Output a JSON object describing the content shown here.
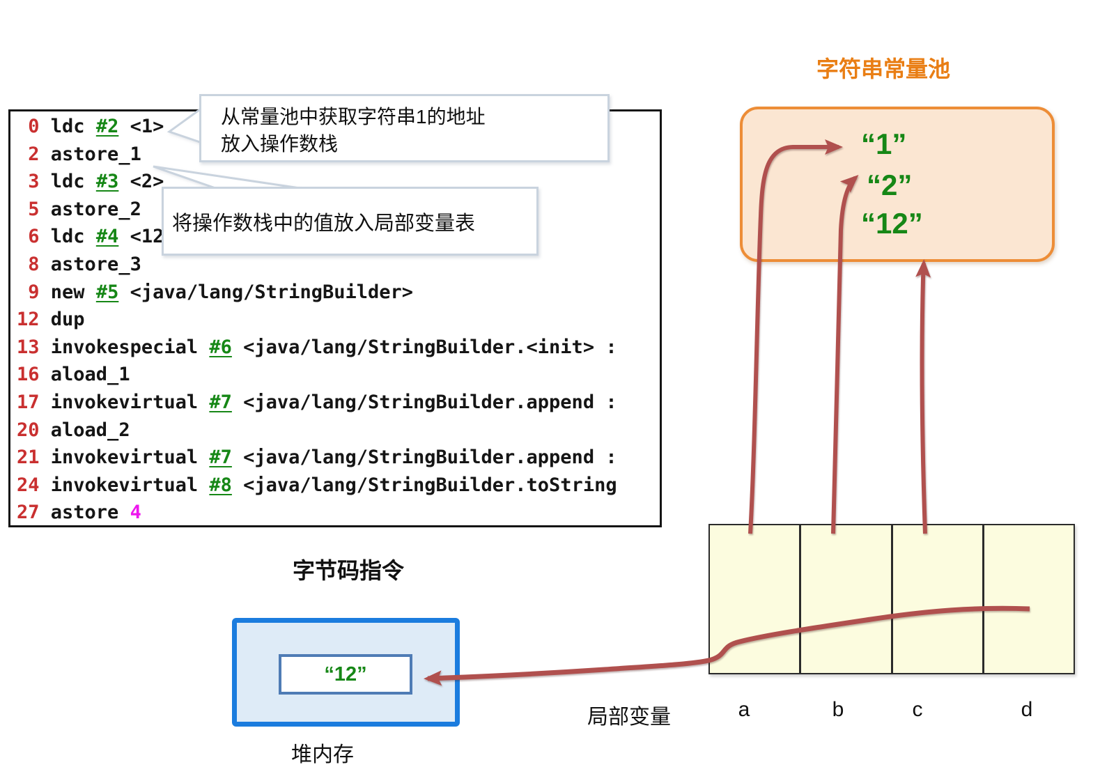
{
  "bytecode_panel": {
    "caption": "字节码指令",
    "lines": [
      {
        "num": "0",
        "instr": "ldc",
        "ref": "#2",
        "operand": "<1>"
      },
      {
        "num": "2",
        "instr": "astore_1"
      },
      {
        "num": "3",
        "instr": "ldc",
        "ref": "#3",
        "operand": "<2>"
      },
      {
        "num": "5",
        "instr": "astore_2"
      },
      {
        "num": "6",
        "instr": "ldc",
        "ref": "#4",
        "operand": "<12>"
      },
      {
        "num": "8",
        "instr": "astore_3"
      },
      {
        "num": "9",
        "instr": "new",
        "ref": "#5",
        "operand": "<java/lang/StringBuilder>"
      },
      {
        "num": "12",
        "instr": "dup"
      },
      {
        "num": "13",
        "instr": "invokespecial",
        "ref": "#6",
        "operand": "<java/lang/StringBuilder.<init> :"
      },
      {
        "num": "16",
        "instr": "aload_1"
      },
      {
        "num": "17",
        "instr": "invokevirtual",
        "ref": "#7",
        "operand": "<java/lang/StringBuilder.append :"
      },
      {
        "num": "20",
        "instr": "aload_2"
      },
      {
        "num": "21",
        "instr": "invokevirtual",
        "ref": "#7",
        "operand": "<java/lang/StringBuilder.append :"
      },
      {
        "num": "24",
        "instr": "invokevirtual",
        "ref": "#8",
        "operand": "<java/lang/StringBuilder.toString"
      },
      {
        "num": "27",
        "instr": "astore",
        "operand_magenta": "4"
      }
    ]
  },
  "callouts": [
    {
      "text_lines": [
        "从常量池中获取字符串1的地址",
        "放入操作数栈"
      ]
    },
    {
      "text_lines": [
        "将操作数栈中的值放入局部变量表"
      ]
    }
  ],
  "string_pool": {
    "title": "字符串常量池",
    "items": [
      "“1”",
      "“2”",
      "“12”"
    ]
  },
  "local_vars": {
    "caption": "局部变量",
    "slots": [
      "a",
      "b",
      "c",
      "d"
    ]
  },
  "heap": {
    "caption": "堆内存",
    "value": "“12”"
  },
  "colors": {
    "arrow": "#B0504E",
    "line_number_red": "#C93030",
    "ref_green": "#168716",
    "operand_magenta": "#EE16EE",
    "pool_title_orange": "#E97E14",
    "pool_border": "#ED8D37",
    "pool_fill": "#FBE6D2",
    "table_fill": "#FCFCDF",
    "heap_border": "#1B7CDE",
    "heap_fill": "#DEEBF7",
    "heap_inner_border": "#4F7CB5",
    "callout_border": "#C9D3DE"
  }
}
